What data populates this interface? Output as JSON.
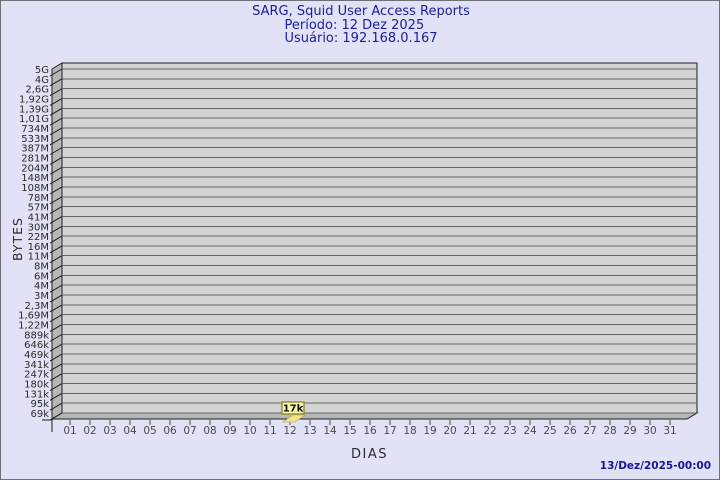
{
  "window": {
    "background_color": "#e2e2f6",
    "border_color": "#6f6f79"
  },
  "header": {
    "title": "SARG, Squid User Access Reports",
    "period_line": "Período: 12 Dez 2025",
    "user_line": "Usuário: 192.168.0.167",
    "text_color": "#1c1c9c"
  },
  "footer": {
    "timestamp": "13/Dez/2025-00:00",
    "text_color": "#15159c"
  },
  "chart_data": {
    "type": "bar",
    "style": "3d",
    "title": "SARG, Squid User Access Reports",
    "subtitle": [
      "Período: 12 Dez 2025",
      "Usuário: 192.168.0.167"
    ],
    "xlabel": "DIAS",
    "ylabel": "BYTES",
    "y_scale": "log",
    "grid": true,
    "legend": null,
    "y_tick_labels": [
      "5G",
      "4G",
      "2,6G",
      "1,92G",
      "1,39G",
      "1,01G",
      "734M",
      "533M",
      "387M",
      "281M",
      "204M",
      "148M",
      "108M",
      "78M",
      "57M",
      "41M",
      "30M",
      "22M",
      "16M",
      "11M",
      "8M",
      "6M",
      "4M",
      "3M",
      "2,3M",
      "1,69M",
      "1,22M",
      "889k",
      "646k",
      "469k",
      "341k",
      "247k",
      "180k",
      "131k",
      "95k",
      "69k"
    ],
    "categories": [
      "01",
      "02",
      "03",
      "04",
      "05",
      "06",
      "07",
      "08",
      "09",
      "10",
      "11",
      "12",
      "13",
      "14",
      "15",
      "16",
      "17",
      "18",
      "19",
      "20",
      "21",
      "22",
      "23",
      "24",
      "25",
      "26",
      "27",
      "28",
      "29",
      "30",
      "31"
    ],
    "values": [
      null,
      null,
      null,
      null,
      null,
      null,
      null,
      null,
      null,
      null,
      null,
      17000,
      null,
      null,
      null,
      null,
      null,
      null,
      null,
      null,
      null,
      null,
      null,
      null,
      null,
      null,
      null,
      null,
      null,
      null,
      null
    ],
    "value_labels": {
      "12": "17k"
    },
    "colors": {
      "wall": "#d4d4d4",
      "side": "#b7b7b7",
      "grid": "#666666",
      "frame": "#1e1e1e",
      "tick_text": "#2a2a2a",
      "x_text": "#4a4a4a",
      "bar": "#f2e48b",
      "bar_edge": "#b0a43a",
      "label_bg": "#fbf5b4",
      "label_border": "#8f8c2e",
      "label_text": "#111100"
    }
  }
}
